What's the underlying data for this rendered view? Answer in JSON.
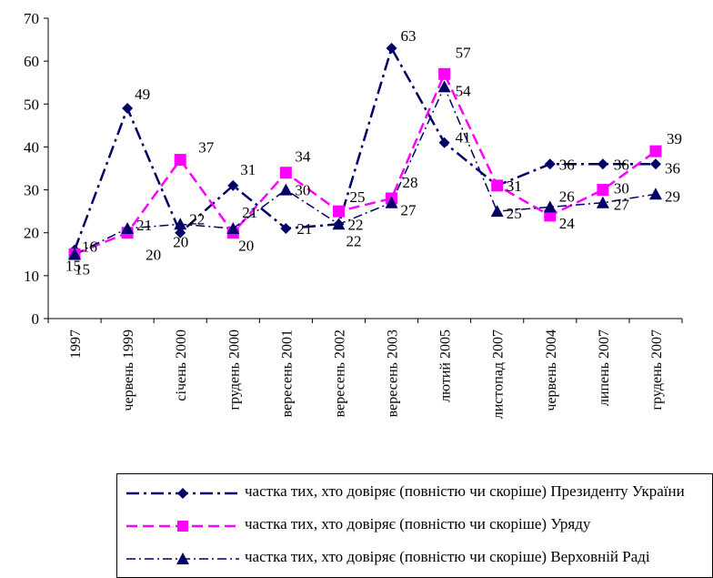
{
  "chart_data": {
    "type": "line",
    "categories": [
      "1997",
      "червень 1999",
      "січень 2000",
      "грудень 2000",
      "вересень 2001",
      "вересень 2002",
      "вересень 2003",
      "лютий 2005",
      "листопад 2007",
      "червень 2004",
      "липень 2007",
      "грудень 2007"
    ],
    "ylim": [
      0,
      70
    ],
    "yticks": [
      0,
      10,
      20,
      30,
      40,
      50,
      60,
      70
    ],
    "grid": false,
    "legend_position": "bottom",
    "series": [
      {
        "name": "частка тих, хто довіряє (повністю чи скоріше) Президенту України",
        "values": [
          16,
          49,
          20,
          31,
          21,
          22,
          63,
          41,
          31,
          36,
          36,
          36
        ],
        "color": "#000066",
        "marker": "diamond",
        "dash": "dash-dot-long"
      },
      {
        "name": "частка тих, хто довіряє (повністю чи скоріше) Уряду",
        "values": [
          15,
          20,
          37,
          20,
          34,
          25,
          28,
          57,
          31,
          24,
          30,
          39
        ],
        "color": "#ff00ff",
        "marker": "square",
        "dash": "dashed"
      },
      {
        "name": "частка тих, хто довіряє (повністю чи скоріше) Верховній Раді",
        "values": [
          15,
          21,
          22,
          21,
          30,
          22,
          27,
          54,
          25,
          26,
          27,
          29
        ],
        "color": "#000066",
        "marker": "triangle",
        "dash": "dash-dot"
      }
    ]
  }
}
